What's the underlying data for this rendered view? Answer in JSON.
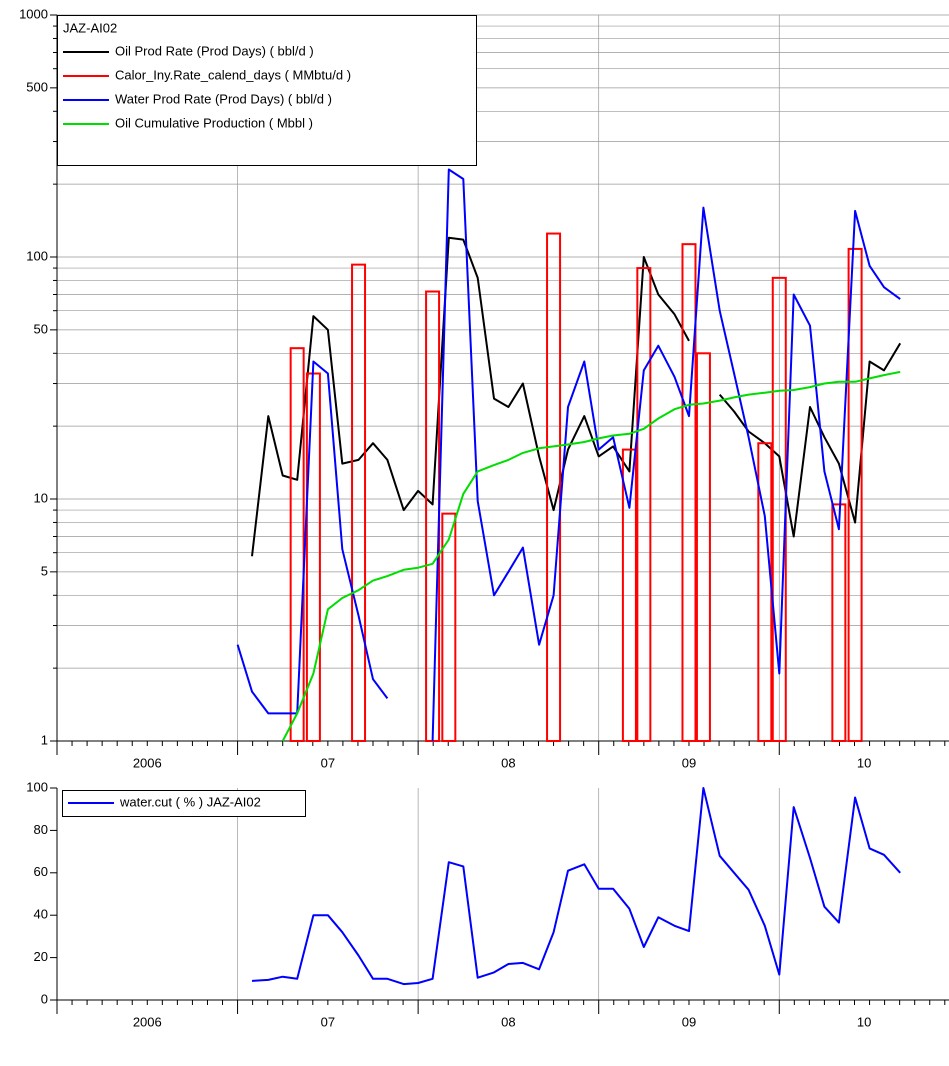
{
  "chart_data": [
    {
      "type": "line",
      "log_y": true,
      "grid": "both",
      "legend": "upper left",
      "legend_title": "JAZ-AI02",
      "x": [
        2007,
        2007.08,
        2007.17,
        2007.25,
        2007.33,
        2007.42,
        2007.5,
        2007.58,
        2007.67,
        2007.75,
        2007.83,
        2007.92,
        2008,
        2008.08,
        2008.17,
        2008.25,
        2008.33,
        2008.42,
        2008.5,
        2008.58,
        2008.67,
        2008.75,
        2008.83,
        2008.92,
        2009,
        2009.08,
        2009.17,
        2009.25,
        2009.33,
        2009.42,
        2009.5,
        2009.58,
        2009.67,
        2009.75,
        2009.83,
        2009.92,
        2010,
        2010.08,
        2010.17,
        2010.25,
        2010.33,
        2010.42,
        2010.5,
        2010.58,
        2010.67
      ],
      "xlim": [
        2006,
        2010.94
      ],
      "xticks": [
        {
          "value": 2006,
          "label": "2006"
        },
        {
          "value": 2007,
          "label": "07"
        },
        {
          "value": 2008,
          "label": "08"
        },
        {
          "value": 2009,
          "label": "09"
        },
        {
          "value": 2010,
          "label": "10"
        }
      ],
      "ylim": [
        1,
        1000
      ],
      "yticks": [
        1,
        5,
        10,
        50,
        100,
        500,
        1000
      ],
      "yminorticks": [
        2,
        3,
        4,
        6,
        7,
        8,
        9,
        20,
        30,
        40,
        60,
        70,
        80,
        90,
        200,
        300,
        400,
        600,
        700,
        800,
        900
      ],
      "series": [
        {
          "name": "Oil Prod Rate (Prod Days) ( bbl/d )",
          "color": "#000000",
          "type": "line",
          "values": [
            null,
            5.8,
            22,
            12.5,
            12,
            57,
            50,
            14,
            14.5,
            17,
            14.5,
            9,
            10.8,
            9.5,
            120,
            118,
            82,
            26,
            24,
            30,
            15,
            9,
            16,
            22,
            15,
            16.5,
            13,
            100,
            70,
            58,
            45,
            null,
            27,
            23,
            19,
            17,
            15,
            7,
            24,
            18,
            14,
            8,
            37,
            34,
            44
          ]
        },
        {
          "name": "Calor_Iny.Rate_calend_days ( MMbtu/d )",
          "color": "#ff0000",
          "type": "bar",
          "values": [
            null,
            null,
            null,
            null,
            42,
            33,
            null,
            null,
            93,
            null,
            null,
            null,
            null,
            72,
            8.7,
            null,
            null,
            null,
            null,
            null,
            null,
            125,
            null,
            null,
            null,
            null,
            16,
            90,
            null,
            null,
            113,
            40,
            null,
            null,
            null,
            17,
            82,
            null,
            null,
            null,
            9.5,
            108,
            null,
            null,
            null
          ]
        },
        {
          "name": "Water Prod Rate (Prod Days) ( bbl/d )",
          "color": "#0000ff",
          "type": "line",
          "values": [
            2.5,
            1.6,
            1.3,
            1.3,
            1.3,
            37,
            33,
            6.2,
            3.3,
            1.8,
            1.5,
            null,
            null,
            1,
            230,
            210,
            9.8,
            4,
            5,
            6.3,
            2.5,
            4,
            24,
            37,
            16,
            18,
            9.2,
            34,
            43,
            32,
            22,
            160,
            60,
            33,
            18,
            8.5,
            1.9,
            70,
            52,
            13,
            7.5,
            155,
            92,
            75,
            67
          ]
        },
        {
          "name": "Oil Cumulative Production ( Mbbl )",
          "color": "#00dd00",
          "type": "line",
          "values": [
            null,
            null,
            null,
            1.0,
            1.3,
            1.9,
            3.5,
            3.9,
            4.2,
            4.6,
            4.8,
            5.1,
            5.2,
            5.4,
            6.8,
            10.5,
            13,
            13.8,
            14.5,
            15.5,
            16.2,
            16.5,
            16.8,
            17.2,
            17.8,
            18.3,
            18.6,
            19.5,
            21.5,
            23.5,
            24.5,
            24.8,
            25.5,
            26.3,
            27,
            27.5,
            28,
            28.2,
            29,
            30,
            30.5,
            30.5,
            31.5,
            32.5,
            33.5
          ]
        }
      ]
    },
    {
      "type": "line",
      "log_y": false,
      "grid": "x",
      "legend": "upper left",
      "x": [
        2007,
        2007.08,
        2007.17,
        2007.25,
        2007.33,
        2007.42,
        2007.5,
        2007.58,
        2007.67,
        2007.75,
        2007.83,
        2007.92,
        2008,
        2008.08,
        2008.17,
        2008.25,
        2008.33,
        2008.42,
        2008.5,
        2008.58,
        2008.67,
        2008.75,
        2008.83,
        2008.92,
        2009,
        2009.08,
        2009.17,
        2009.25,
        2009.33,
        2009.42,
        2009.5,
        2009.58,
        2009.67,
        2009.75,
        2009.83,
        2009.92,
        2010,
        2010.08,
        2010.17,
        2010.25,
        2010.33,
        2010.42,
        2010.5,
        2010.58,
        2010.67
      ],
      "xlim": [
        2006,
        2010.94
      ],
      "xticks": [
        {
          "value": 2006,
          "label": "2006"
        },
        {
          "value": 2007,
          "label": "07"
        },
        {
          "value": 2008,
          "label": "08"
        },
        {
          "value": 2009,
          "label": "09"
        },
        {
          "value": 2010,
          "label": "10"
        }
      ],
      "ylim": [
        0,
        100
      ],
      "yticks": [
        0,
        20,
        40,
        60,
        80,
        100
      ],
      "series": [
        {
          "name": "water.cut ( % ) JAZ-AI02",
          "color": "#0000ff",
          "type": "line",
          "values": [
            null,
            9,
            9.5,
            11,
            10,
            40,
            40,
            32,
            21,
            10,
            10,
            7.5,
            8,
            10,
            65,
            63,
            10.5,
            13,
            17,
            17.5,
            14.5,
            32,
            61,
            64,
            52.5,
            52.5,
            43,
            25,
            39,
            35,
            32.5,
            100,
            68,
            60,
            52,
            35,
            12,
            91,
            67,
            44,
            36.5,
            95.5,
            71.5,
            68.5,
            60
          ]
        }
      ]
    }
  ]
}
